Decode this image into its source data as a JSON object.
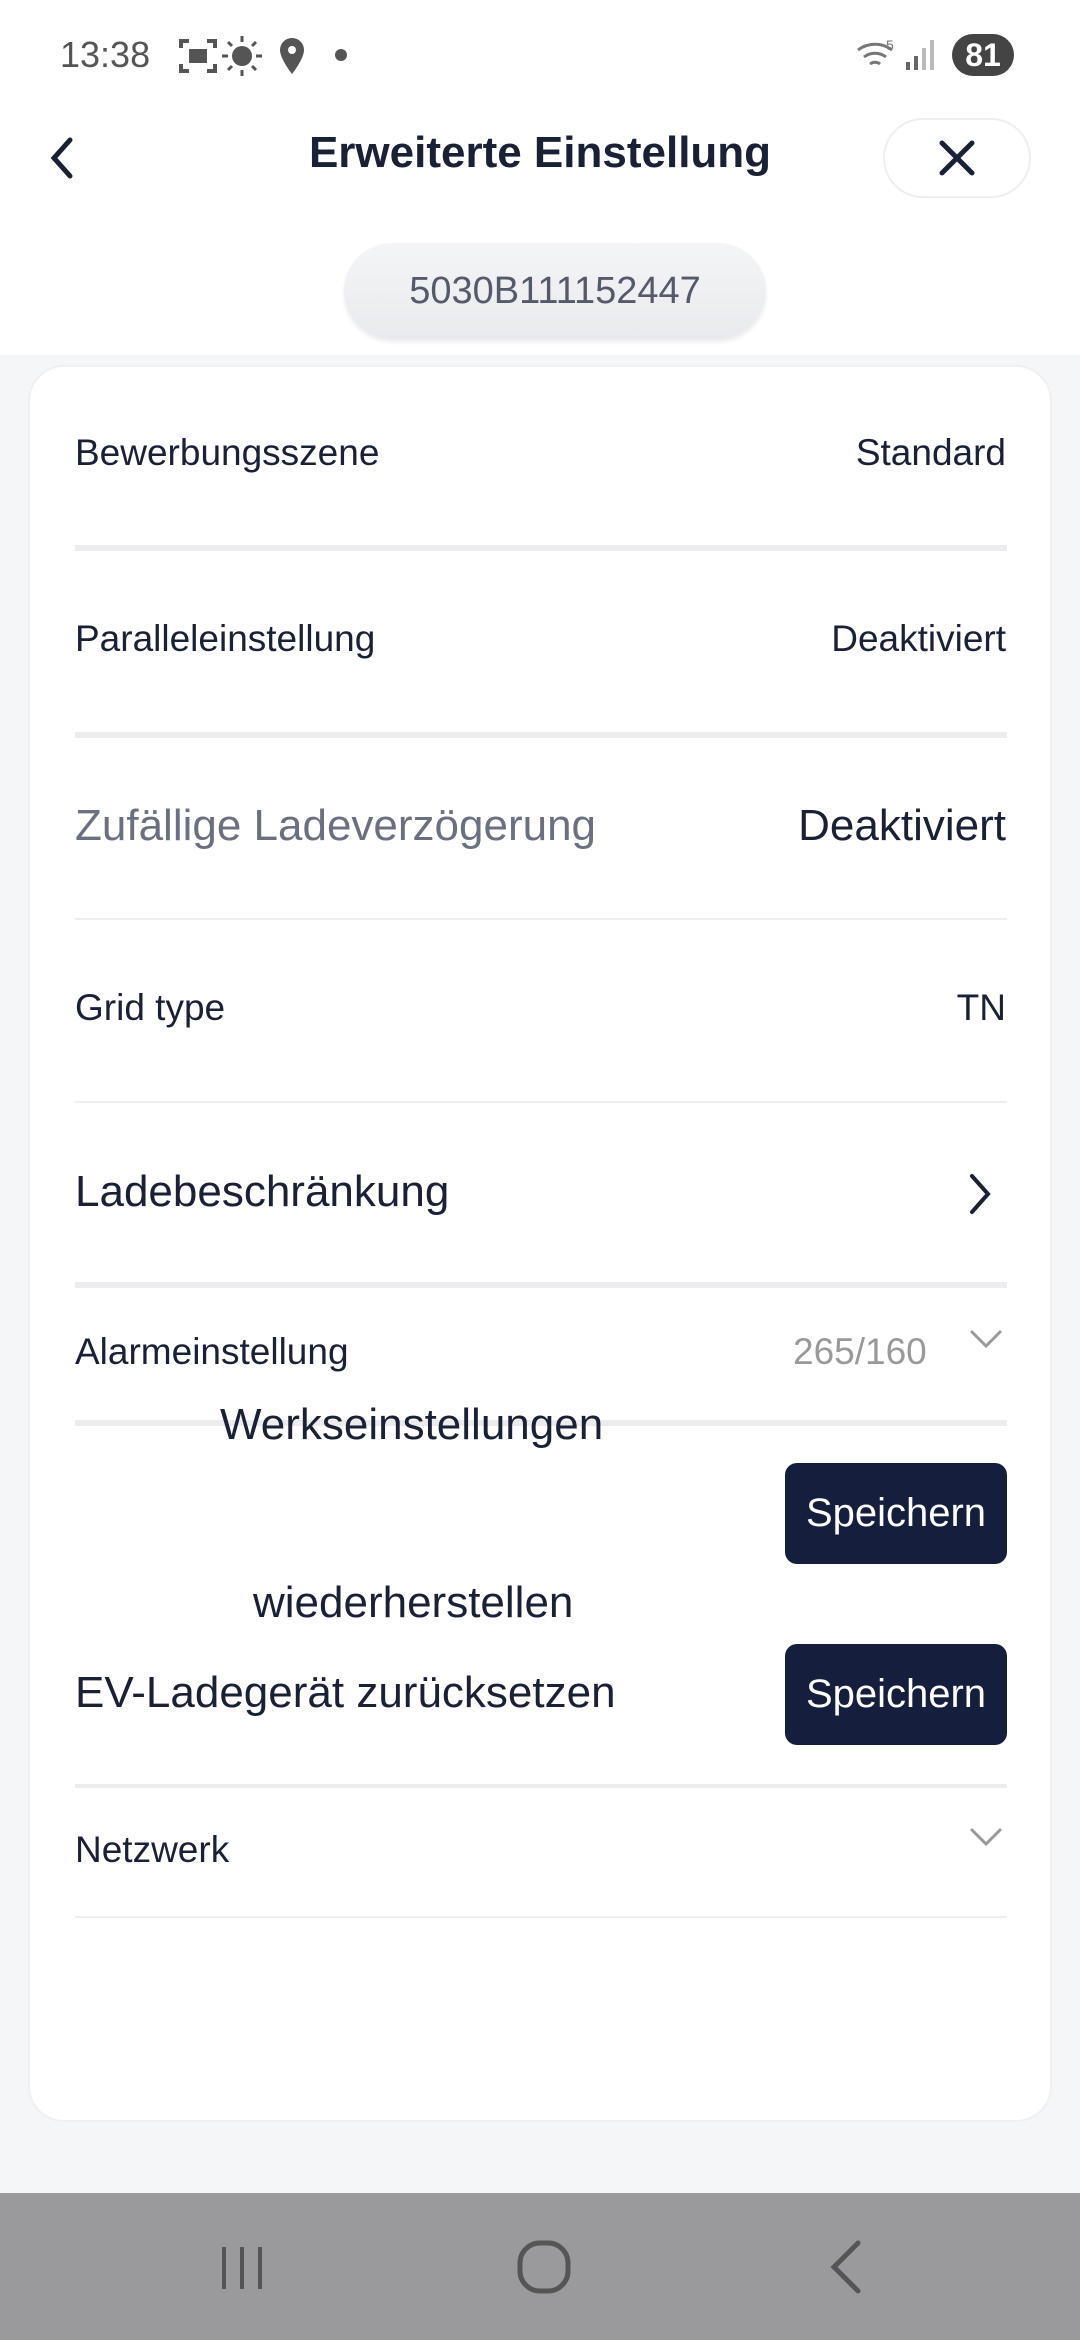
{
  "status_bar": {
    "time": "13:38",
    "battery": "81",
    "icons": [
      "screenshot-icon",
      "brightness-icon",
      "location-icon",
      "dot-icon",
      "wifi-icon",
      "signal-icon"
    ]
  },
  "header": {
    "title": "Erweiterte Einstellung",
    "back_icon": "chevron-left-icon",
    "close_icon": "close-icon"
  },
  "device": {
    "serial": "5030B111152447"
  },
  "rows": [
    {
      "label": "Bewerbungsszene",
      "value": "Standard"
    },
    {
      "label": "Paralleleinstellung",
      "value": "Deaktiviert"
    },
    {
      "label": "Zufällige Ladeverzögerung",
      "value": "Deaktiviert"
    },
    {
      "label": "Grid type",
      "value": "TN"
    },
    {
      "label": "Ladebeschränkung"
    },
    {
      "label": "Alarmeinstellung",
      "value": "265/160"
    },
    {
      "label_line1": "Werkseinstellungen",
      "label_line2": "wiederherstellen",
      "button": "Speichern"
    },
    {
      "label": "EV-Ladegerät zurücksetzen",
      "button": "Speichern"
    },
    {
      "label": "Netzwerk"
    }
  ],
  "colors": {
    "primary": "#151f3d",
    "muted": "#999999",
    "label_gray": "#6b7080"
  }
}
